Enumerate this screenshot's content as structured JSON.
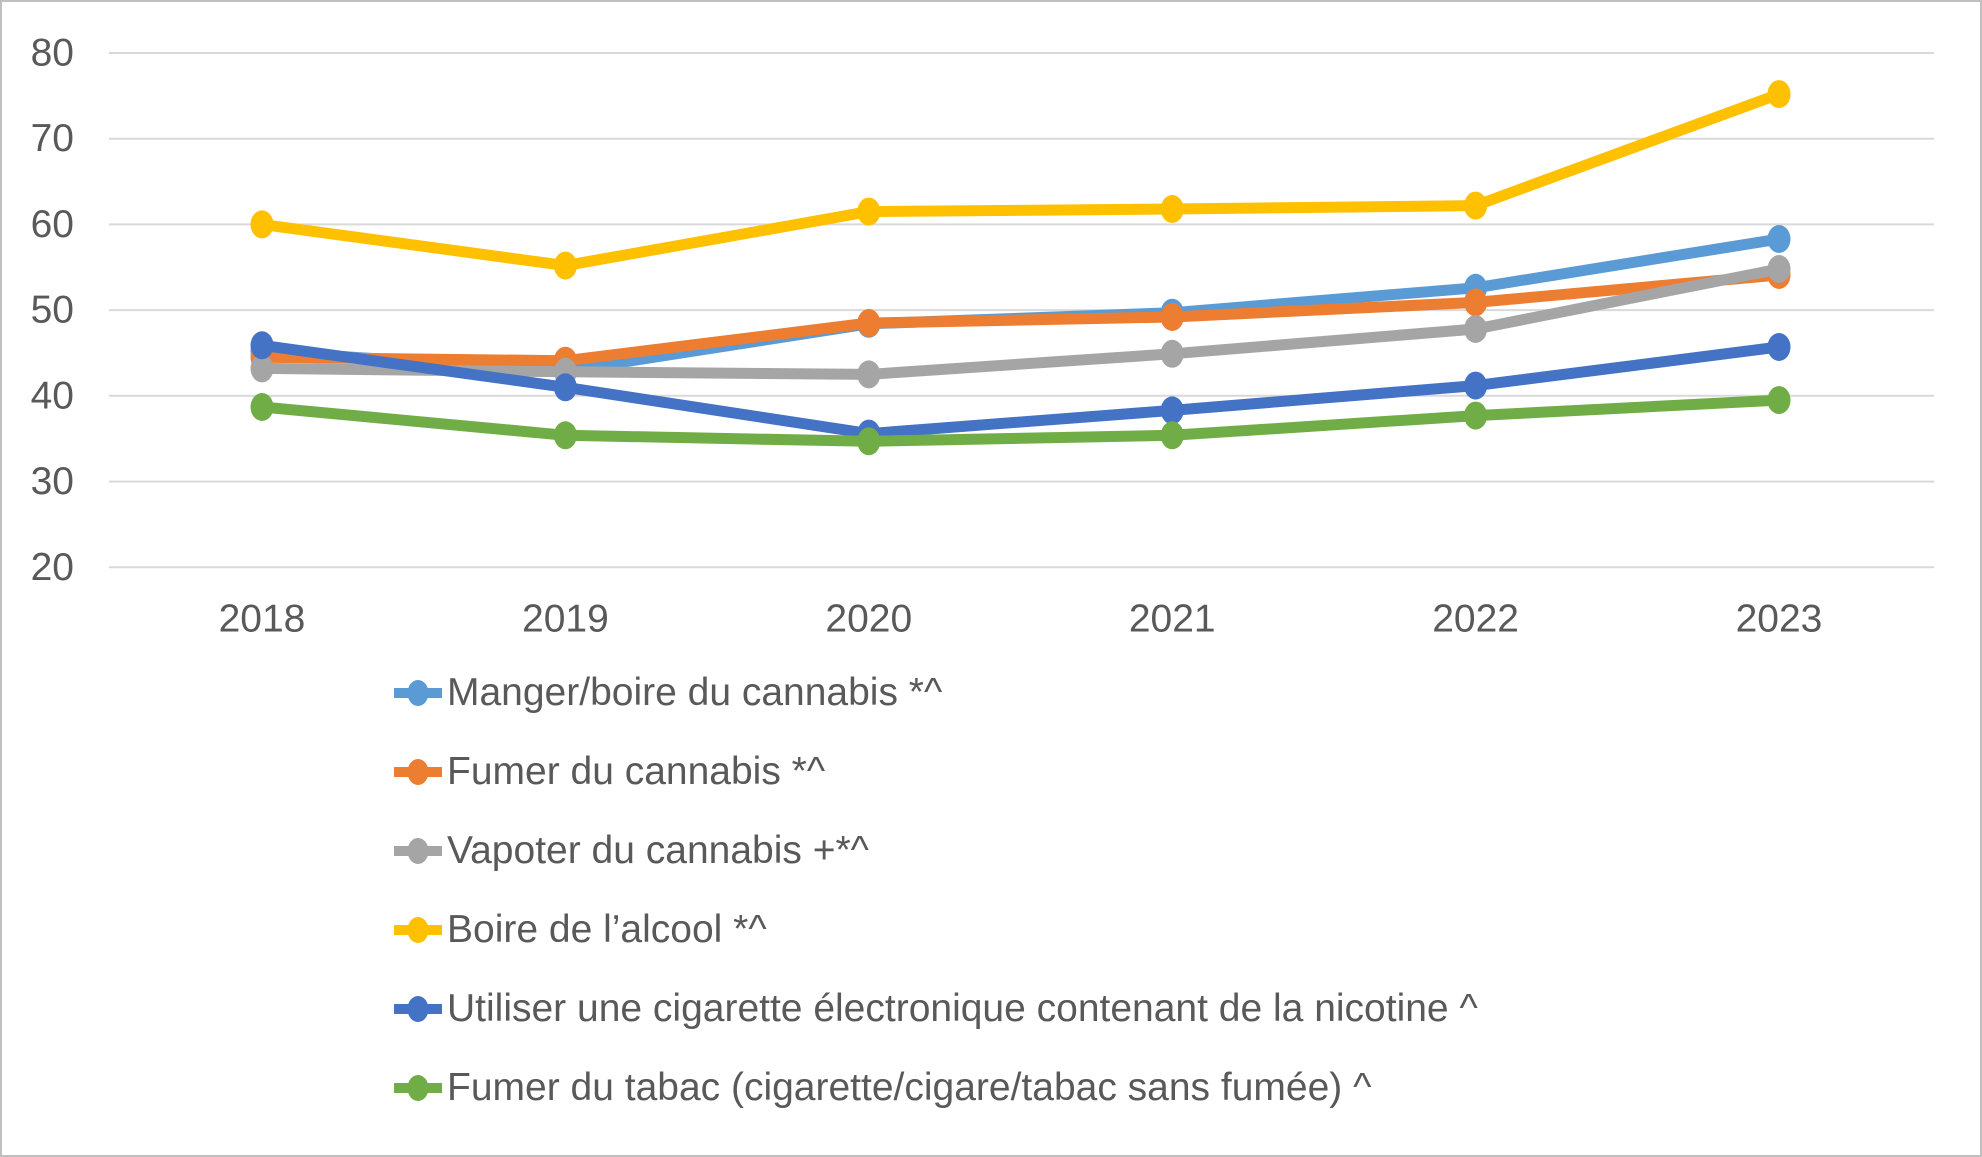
{
  "chart_data": {
    "type": "line",
    "title": "",
    "xlabel": "",
    "ylabel": "",
    "categories": [
      "2018",
      "2019",
      "2020",
      "2021",
      "2022",
      "2023"
    ],
    "series": [
      {
        "name": "Manger/boire du cannabis *^",
        "color": "#5B9BD5",
        "values": [
          45.2,
          42.9,
          48.4,
          49.7,
          52.6,
          58.3
        ]
      },
      {
        "name": "Fumer du cannabis *^",
        "color": "#ED7D31",
        "values": [
          44.5,
          44.1,
          48.5,
          49.2,
          50.9,
          54.1
        ]
      },
      {
        "name": "Vapoter du cannabis +*^",
        "color": "#A5A5A5",
        "values": [
          43.2,
          42.8,
          42.5,
          44.9,
          47.8,
          54.8
        ]
      },
      {
        "name": "Boire de l’alcool *^",
        "color": "#FFC000",
        "values": [
          60.0,
          55.2,
          61.5,
          61.8,
          62.2,
          75.2
        ]
      },
      {
        "name": "Utiliser une cigarette électronique contenant de la nicotine ^",
        "color": "#4472C4",
        "values": [
          45.9,
          41.0,
          35.6,
          38.3,
          41.2,
          45.7
        ]
      },
      {
        "name": "Fumer du tabac (cigarette/cigare/tabac sans fumée) ^",
        "color": "#70AD47",
        "values": [
          38.7,
          35.4,
          34.7,
          35.4,
          37.7,
          39.5
        ]
      }
    ],
    "ylim": [
      20,
      80
    ],
    "y_ticks": [
      80,
      70,
      60,
      50,
      40,
      30,
      20
    ],
    "grid": true,
    "gridline_color": "#D9D9D9",
    "axis_label_color": "#595959",
    "legend_position": "bottom-left"
  }
}
